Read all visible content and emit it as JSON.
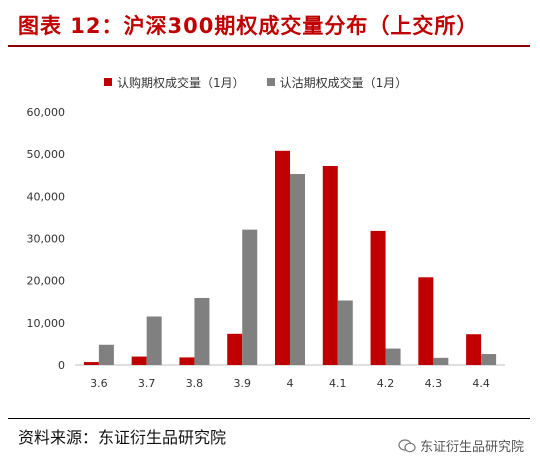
{
  "title": "图表 12：沪深300期权成交量分布（上交所）",
  "source": "资料来源：东证衍生品研究院",
  "watermark": "东证衍生品研究院",
  "colors": {
    "series1": "#c00000",
    "series2": "#808080",
    "title": "#c00000"
  },
  "chart_data": {
    "type": "bar",
    "categories": [
      "3.6",
      "3.7",
      "3.8",
      "3.9",
      "4",
      "4.1",
      "4.2",
      "4.3",
      "4.4"
    ],
    "series": [
      {
        "name": "认购期权成交量（1月）",
        "color": "#c00000",
        "values": [
          700,
          2000,
          1800,
          7400,
          50800,
          47200,
          31800,
          20800,
          7300
        ]
      },
      {
        "name": "认沽期权成交量（1月）",
        "color": "#808080",
        "values": [
          4800,
          11500,
          15900,
          32100,
          45300,
          15300,
          3900,
          1700,
          2600
        ]
      }
    ],
    "ylim": [
      0,
      60000
    ],
    "yticks": [
      "0",
      "10,000",
      "20,000",
      "30,000",
      "40,000",
      "50,000",
      "60,000"
    ],
    "legend_position": "top"
  }
}
